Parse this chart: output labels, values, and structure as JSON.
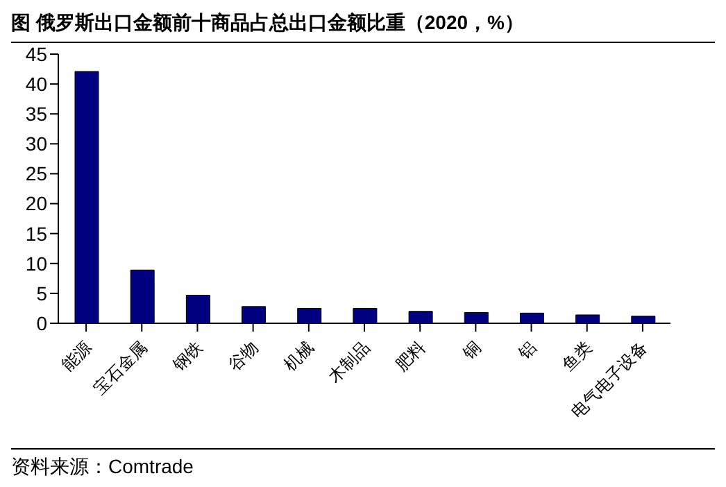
{
  "chart_data": {
    "type": "bar",
    "title": "图  俄罗斯出口金额前十商品占总出口金额比重（2020，%）",
    "categories": [
      "能源",
      "宝石金属",
      "钢铁",
      "谷物",
      "机械",
      "木制品",
      "肥料",
      "铜",
      "铝",
      "鱼类",
      "电气电子设备"
    ],
    "values": [
      42.1,
      8.9,
      4.7,
      2.8,
      2.5,
      2.5,
      2.0,
      1.8,
      1.7,
      1.4,
      1.2
    ],
    "color": "#000080",
    "ylim": [
      0,
      45
    ],
    "yticks": [
      0,
      5,
      10,
      15,
      20,
      25,
      30,
      35,
      40,
      45
    ],
    "annotations": [
      "资料来源：Comtrade"
    ]
  }
}
